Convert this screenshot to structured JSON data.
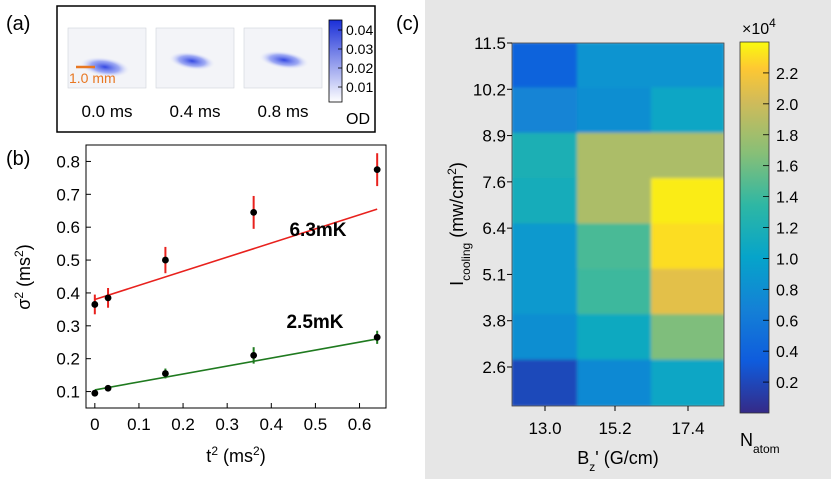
{
  "colors": {
    "panel_c_bg": "#e6e6e6",
    "red_fit": "#e8211d",
    "green_fit": "#1f7a1f",
    "scale_bar": "#e87722",
    "blob": "#2a3fe0"
  },
  "panel_a": {
    "label": "(a)",
    "frames": [
      {
        "time": "0.0 ms"
      },
      {
        "time": "0.4 ms"
      },
      {
        "time": "0.8 ms"
      }
    ],
    "scale_bar_label": "1.0 mm",
    "colorbar_ticks": [
      "0.04",
      "0.03",
      "0.02",
      "0.01"
    ],
    "colorbar_label": "OD"
  },
  "chart_data": [
    {
      "panel": "(b)",
      "type": "scatter",
      "xlabel": "t",
      "xlabel_sup": "2",
      "xlabel_unit_pre": " (ms",
      "xlabel_unit_sup": "2",
      "xlabel_unit_post": ")",
      "ylabel": "σ",
      "ylabel_sup": "2",
      "ylabel_unit_pre": " (ms",
      "ylabel_unit_sup": "2",
      "ylabel_unit_post": ")",
      "xlim": [
        -0.02,
        0.66
      ],
      "ylim": [
        0.05,
        0.85
      ],
      "xticks": [
        0,
        0.1,
        0.2,
        0.3,
        0.4,
        0.5,
        0.6
      ],
      "xtick_labels": [
        "0",
        "0.1",
        "0.2",
        "0.3",
        "0.4",
        "0.5",
        "0.6"
      ],
      "yticks": [
        0.1,
        0.2,
        0.3,
        0.4,
        0.5,
        0.6,
        0.7,
        0.8
      ],
      "ytick_labels": [
        "0.1",
        "0.2",
        "0.3",
        "0.4",
        "0.5",
        "0.6",
        "0.7",
        "0.8"
      ],
      "series": [
        {
          "name": "6.3mK",
          "color": "#e8211d",
          "x": [
            0,
            0.03,
            0.16,
            0.36,
            0.64
          ],
          "y": [
            0.365,
            0.385,
            0.5,
            0.645,
            0.775
          ],
          "err": [
            0.03,
            0.03,
            0.04,
            0.05,
            0.05
          ],
          "fit": [
            0.38,
            0.655
          ]
        },
        {
          "name": "2.5mK",
          "color": "#1f7a1f",
          "x": [
            0,
            0.03,
            0.16,
            0.36,
            0.64
          ],
          "y": [
            0.095,
            0.11,
            0.155,
            0.21,
            0.265
          ],
          "err": [
            0.008,
            0.008,
            0.015,
            0.025,
            0.02
          ],
          "fit": [
            0.105,
            0.26
          ]
        }
      ]
    },
    {
      "panel": "(c)",
      "type": "heatmap",
      "xlabel": "B",
      "xlabel_sub": "z",
      "xlabel_rest": "' (G/cm)",
      "ylabel": "I",
      "ylabel_sub": "cooling",
      "ylabel_rest": " (mw/cm",
      "ylabel_sup": "2",
      "ylabel_end": ")",
      "x_categories": [
        "13.0",
        "15.2",
        "17.4"
      ],
      "y_categories": [
        "2.6",
        "3.8",
        "5.1",
        "6.4",
        "7.6",
        "8.9",
        "10.2",
        "11.5"
      ],
      "values_top_to_bottom": [
        [
          0.4,
          0.85,
          0.85
        ],
        [
          0.7,
          0.8,
          1.05
        ],
        [
          1.2,
          1.85,
          1.85
        ],
        [
          1.15,
          1.85,
          2.35
        ],
        [
          0.9,
          1.45,
          2.3
        ],
        [
          0.9,
          1.4,
          2.1
        ],
        [
          0.8,
          1.1,
          1.65
        ],
        [
          0.2,
          0.75,
          1.05
        ]
      ],
      "colorbar_multiplier": "×10",
      "colorbar_multiplier_exp": "4",
      "colorbar_range": [
        0,
        2.4
      ],
      "colorbar_ticks": [
        0.2,
        0.4,
        0.6,
        0.8,
        1.0,
        1.2,
        1.4,
        1.6,
        1.8,
        2.0,
        2.2
      ],
      "colorbar_tick_labels": [
        "0.2",
        "0.4",
        "0.6",
        "0.8",
        "1.0",
        "1.2",
        "1.4",
        "1.6",
        "1.8",
        "2.0",
        "2.2"
      ],
      "colorbar_label": "N",
      "colorbar_label_sub": "atom"
    }
  ]
}
